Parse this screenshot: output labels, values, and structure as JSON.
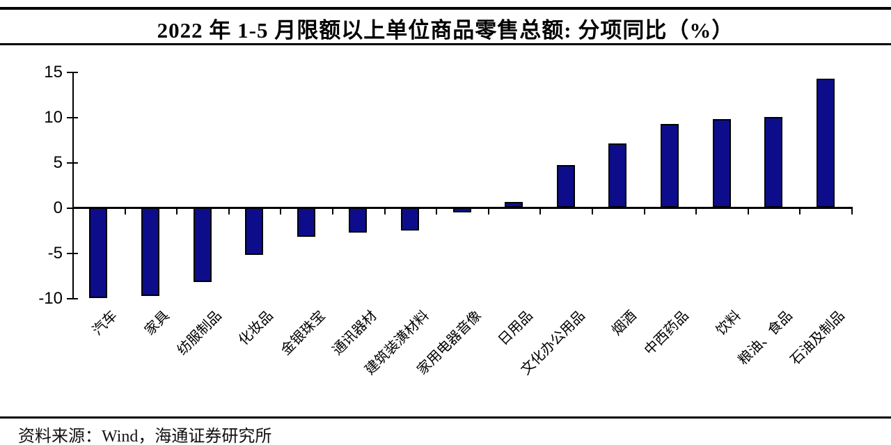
{
  "title": "2022 年 1-5 月限额以上单位商品零售总额: 分项同比（%）",
  "source": "资料来源：Wind，海通证券研究所",
  "chart_data": {
    "type": "bar",
    "title": "2022 年 1-5 月限额以上单位商品零售总额: 分项同比（%）",
    "categories": [
      "汽车",
      "家具",
      "纺服制品",
      "化妆品",
      "金银珠宝",
      "通讯器材",
      "建筑装潢材料",
      "家用电器音像",
      "日用品",
      "文化办公用品",
      "烟酒",
      "中西药品",
      "饮料",
      "粮油、食品",
      "石油及制品"
    ],
    "values": [
      -10.0,
      -9.8,
      -8.2,
      -5.2,
      -3.2,
      -2.8,
      -2.5,
      -0.5,
      0.6,
      4.7,
      7.1,
      9.2,
      9.8,
      10.0,
      14.2
    ],
    "xlabel": "",
    "ylabel": "",
    "ylim": [
      -10,
      15
    ],
    "yticks": [
      15,
      10,
      5,
      0,
      -5,
      -10
    ],
    "grid": false,
    "legend_position": "none",
    "bar_color": "#0D0D8B",
    "bar_border_color": "#000000",
    "axis_color": "#000000"
  }
}
